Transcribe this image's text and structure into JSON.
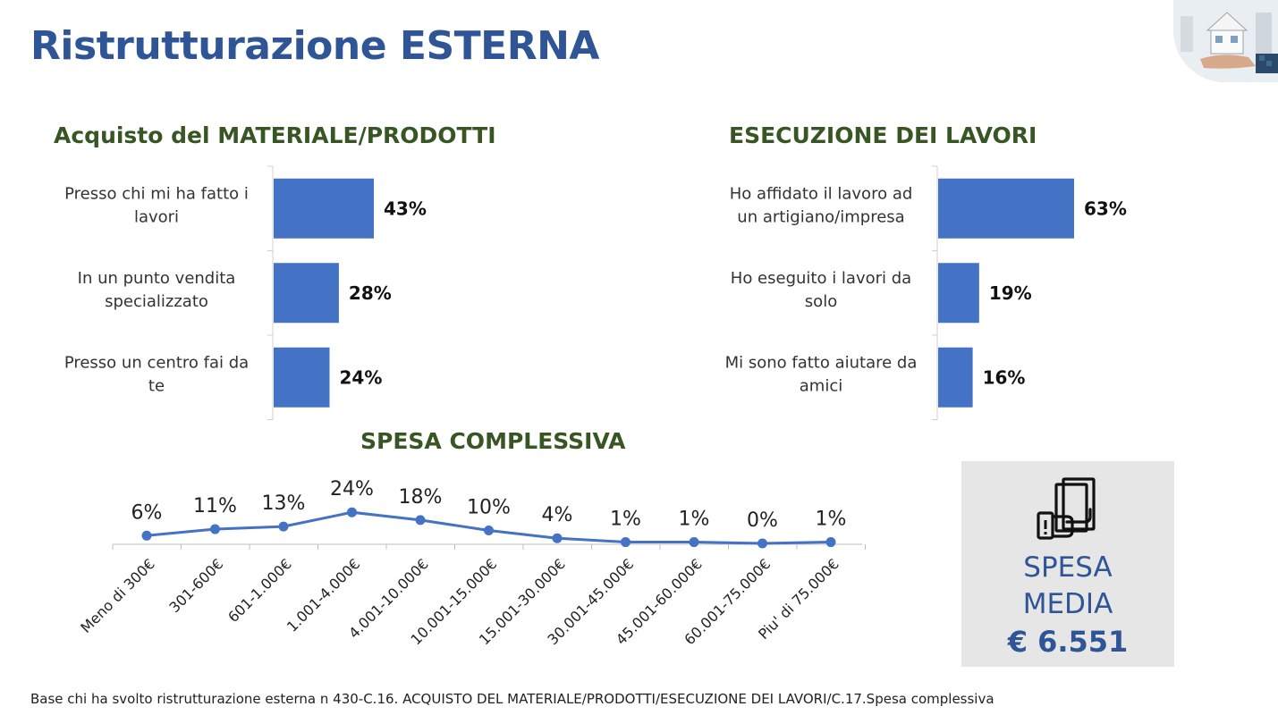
{
  "page": {
    "title": "Ristrutturazione ESTERNA",
    "footnote": "Base chi ha svolto ristrutturazione esterna n 430-C.16. ACQUISTO DEL MATERIALE/PRODOTTI/ESECUZIONE DEI LAVORI/C.17.Spesa complessiva"
  },
  "spesa_media": {
    "label_line1": "SPESA",
    "label_line2": "MEDIA",
    "value": "€ 6.551",
    "icon": "money-hand-icon"
  },
  "chart_data": [
    {
      "type": "bar",
      "orientation": "horizontal",
      "title": "Acquisto del MATERIALE/PRODOTTI",
      "categories": [
        "Presso chi mi ha fatto i lavori",
        "In un punto vendita specializzato",
        "Presso un centro fai da te"
      ],
      "category_lines": [
        [
          "Presso chi mi ha fatto i",
          "lavori"
        ],
        [
          "In un punto vendita",
          "specializzato"
        ],
        [
          "Presso un centro fai da",
          "te"
        ]
      ],
      "values": [
        43,
        28,
        24
      ],
      "labels": [
        "43%",
        "28%",
        "24%"
      ],
      "unit": "%",
      "color": "#4472C4"
    },
    {
      "type": "bar",
      "orientation": "horizontal",
      "title": "ESECUZIONE DEI LAVORI",
      "categories": [
        "Ho affidato il lavoro ad un artigiano/impresa",
        "Ho eseguito i lavori  da solo",
        "Mi sono fatto aiutare da amici"
      ],
      "category_lines": [
        [
          "Ho affidato il lavoro ad",
          "un artigiano/impresa"
        ],
        [
          "Ho eseguito i lavori  da",
          "solo"
        ],
        [
          "Mi sono fatto aiutare da",
          "amici"
        ]
      ],
      "values": [
        63,
        19,
        16
      ],
      "labels": [
        "63%",
        "19%",
        "16%"
      ],
      "unit": "%",
      "color": "#4472C4"
    },
    {
      "type": "line",
      "title": "SPESA COMPLESSIVA",
      "categories": [
        "Meno di 300€",
        "301-600€",
        "601-1.000€",
        "1.001-4.000€",
        "4.001-10.000€",
        "10.001-15.000€",
        "15.001-30.000€",
        "30.001-45.000€",
        "45.001-60.000€",
        "60.001-75.000€",
        "Piu' di 75.000€"
      ],
      "values": [
        6,
        11,
        13,
        24,
        18,
        10,
        4,
        1,
        1,
        0,
        1
      ],
      "labels": [
        "6%",
        "11%",
        "13%",
        "24%",
        "18%",
        "10%",
        "4%",
        "1%",
        "1%",
        "0%",
        "1%"
      ],
      "unit": "%",
      "color": "#4472C4"
    }
  ]
}
